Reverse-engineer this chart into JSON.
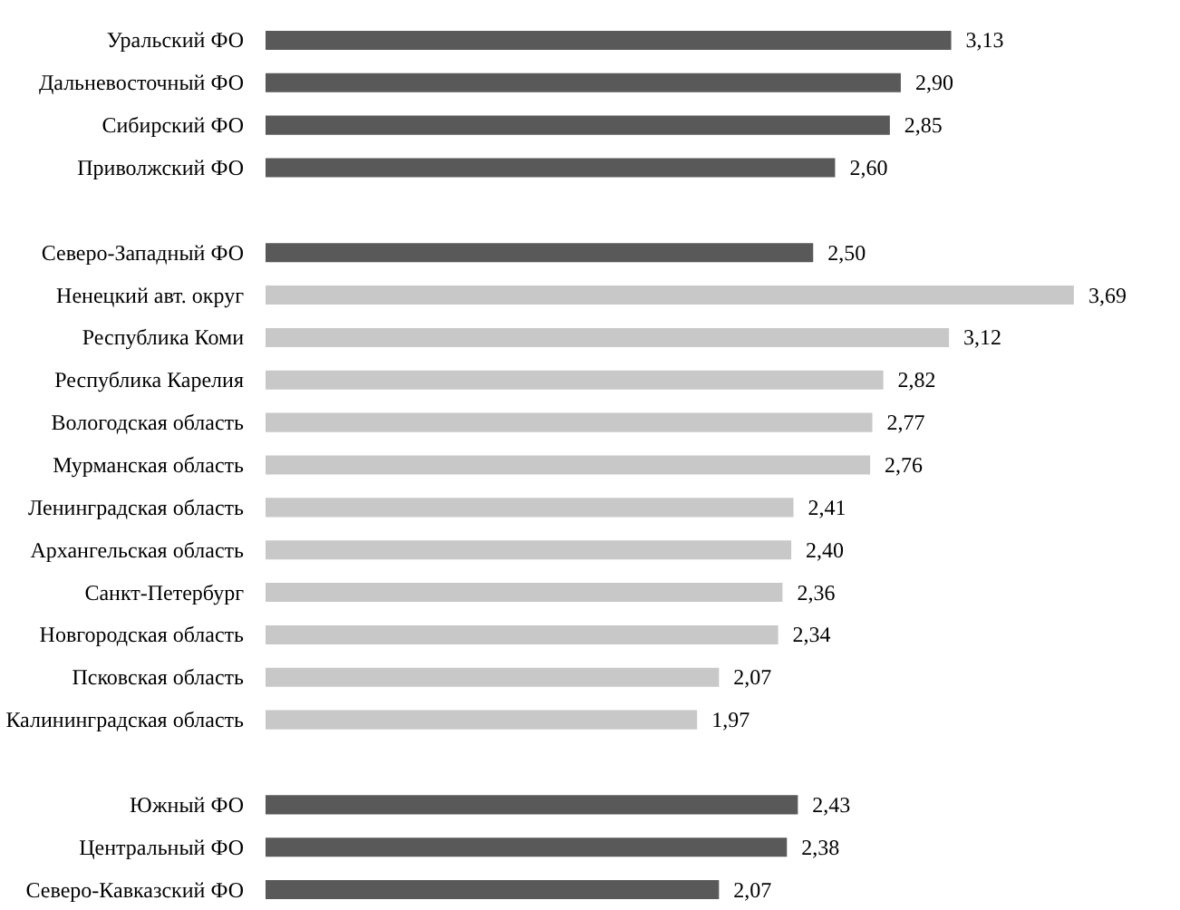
{
  "chart_data": {
    "type": "bar",
    "orientation": "horizontal",
    "grid": false,
    "categories": [
      "Уральский ФО",
      "Дальневосточный ФО",
      "Сибирский ФО",
      "Приволжский ФО",
      null,
      "Северо-Западный ФО",
      "Ненецкий авт. округ",
      "Республика Коми",
      "Республика Карелия",
      "Вологодская область",
      "Мурманская область",
      "Ленинградская область",
      "Архангельская область",
      "Санкт-Петербург",
      "Новгородская область",
      "Псковская область",
      "Калининградская область",
      null,
      "Южный ФО",
      "Центральный ФО",
      "Северо-Кавказский ФО"
    ],
    "values": [
      3.13,
      2.9,
      2.85,
      2.6,
      null,
      2.5,
      3.69,
      3.12,
      2.82,
      2.77,
      2.76,
      2.41,
      2.4,
      2.36,
      2.34,
      2.07,
      1.97,
      null,
      2.43,
      2.38,
      2.07
    ],
    "value_labels": [
      "3,13",
      "2,90",
      "2,85",
      "2,60",
      null,
      "2,50",
      "3,69",
      "3,12",
      "2,82",
      "2,77",
      "2,76",
      "2,41",
      "2,40",
      "2,36",
      "2,34",
      "2,07",
      "1,97",
      null,
      "2,43",
      "2,38",
      "2,07"
    ],
    "colors": [
      "#595959",
      "#595959",
      "#595959",
      "#595959",
      null,
      "#595959",
      "#c8c8c8",
      "#c8c8c8",
      "#c8c8c8",
      "#c8c8c8",
      "#c8c8c8",
      "#c8c8c8",
      "#c8c8c8",
      "#c8c8c8",
      "#c8c8c8",
      "#c8c8c8",
      "#c8c8c8",
      null,
      "#595959",
      "#595959",
      "#595959"
    ]
  }
}
